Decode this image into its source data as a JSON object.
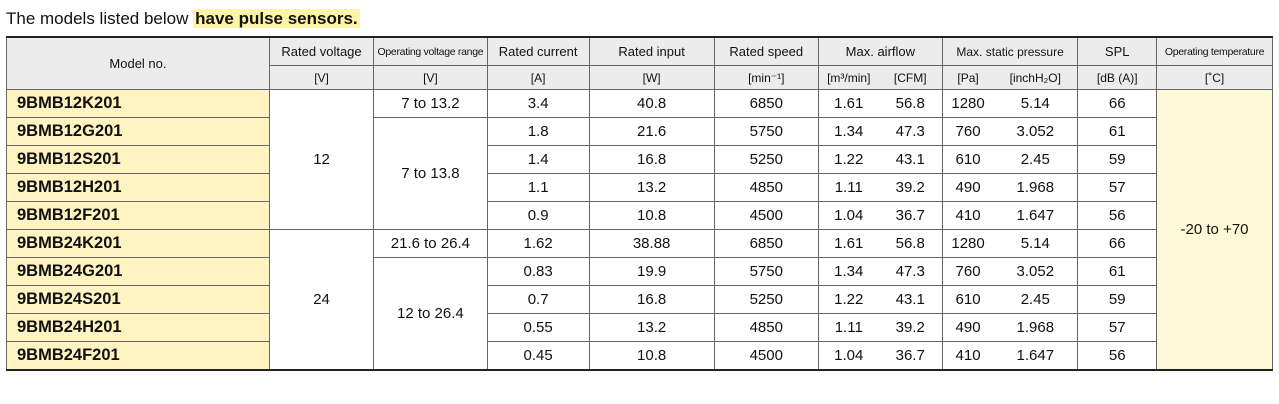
{
  "caption": {
    "prefix": "The models listed below",
    "highlight": "have pulse sensors."
  },
  "headers": {
    "model": "Model no.",
    "rated_voltage": "Rated voltage",
    "op_voltage_range": "Operating voltage range",
    "rated_current": "Rated current",
    "rated_input": "Rated input",
    "rated_speed": "Rated speed",
    "max_airflow": "Max. airflow",
    "max_static_pressure": "Max. static pressure",
    "spl": "SPL",
    "op_temp": "Operating temperature"
  },
  "units": {
    "rated_voltage": "[V]",
    "op_voltage_range": "[V]",
    "rated_current": "[A]",
    "rated_input": "[W]",
    "rated_speed": "[min⁻¹]",
    "airflow_m3": "[m³/min]",
    "airflow_cfm": "[CFM]",
    "pressure_pa": "[Pa]",
    "pressure_inch": "[inchH₂O]",
    "spl": "[dB (A)]",
    "op_temp": "[˚C]"
  },
  "groups": {
    "voltage_12": "12",
    "voltage_24": "24",
    "range_a": "7 to 13.2",
    "range_b": "7 to 13.8",
    "range_c": "21.6 to 26.4",
    "range_d": "12 to 26.4",
    "temperature": "-20 to +70"
  },
  "rows": [
    {
      "model": "9BMB12K201",
      "current": "3.4",
      "input": "40.8",
      "speed": "6850",
      "m3": "1.61",
      "cfm": "56.8",
      "pa": "1280",
      "inch": "5.14",
      "spl": "66"
    },
    {
      "model": "9BMB12G201",
      "current": "1.8",
      "input": "21.6",
      "speed": "5750",
      "m3": "1.34",
      "cfm": "47.3",
      "pa": "760",
      "inch": "3.052",
      "spl": "61"
    },
    {
      "model": "9BMB12S201",
      "current": "1.4",
      "input": "16.8",
      "speed": "5250",
      "m3": "1.22",
      "cfm": "43.1",
      "pa": "610",
      "inch": "2.45",
      "spl": "59"
    },
    {
      "model": "9BMB12H201",
      "current": "1.1",
      "input": "13.2",
      "speed": "4850",
      "m3": "1.11",
      "cfm": "39.2",
      "pa": "490",
      "inch": "1.968",
      "spl": "57"
    },
    {
      "model": "9BMB12F201",
      "current": "0.9",
      "input": "10.8",
      "speed": "4500",
      "m3": "1.04",
      "cfm": "36.7",
      "pa": "410",
      "inch": "1.647",
      "spl": "56"
    },
    {
      "model": "9BMB24K201",
      "current": "1.62",
      "input": "38.88",
      "speed": "6850",
      "m3": "1.61",
      "cfm": "56.8",
      "pa": "1280",
      "inch": "5.14",
      "spl": "66"
    },
    {
      "model": "9BMB24G201",
      "current": "0.83",
      "input": "19.9",
      "speed": "5750",
      "m3": "1.34",
      "cfm": "47.3",
      "pa": "760",
      "inch": "3.052",
      "spl": "61"
    },
    {
      "model": "9BMB24S201",
      "current": "0.7",
      "input": "16.8",
      "speed": "5250",
      "m3": "1.22",
      "cfm": "43.1",
      "pa": "610",
      "inch": "2.45",
      "spl": "59"
    },
    {
      "model": "9BMB24H201",
      "current": "0.55",
      "input": "13.2",
      "speed": "4850",
      "m3": "1.11",
      "cfm": "39.2",
      "pa": "490",
      "inch": "1.968",
      "spl": "57"
    },
    {
      "model": "9BMB24F201",
      "current": "0.45",
      "input": "10.8",
      "speed": "4500",
      "m3": "1.04",
      "cfm": "36.7",
      "pa": "410",
      "inch": "1.647",
      "spl": "56"
    }
  ]
}
